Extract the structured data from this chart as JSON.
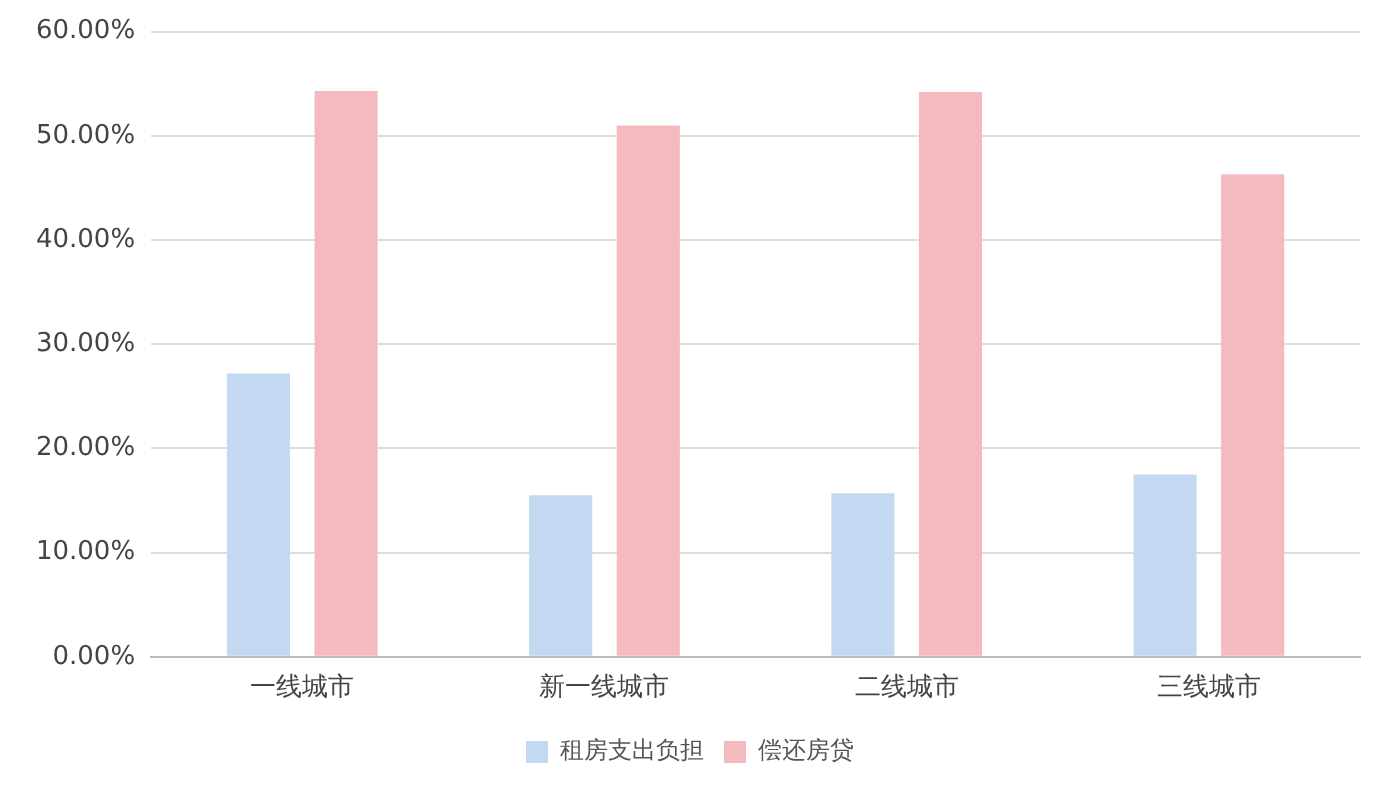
{
  "chart_data": {
    "type": "bar",
    "categories": [
      "一线城市",
      "新一线城市",
      "二线城市",
      "三线城市"
    ],
    "series": [
      {
        "name": "租房支出负担",
        "color": "#c3d9f2",
        "values": [
          27.2,
          15.5,
          15.7,
          17.5
        ]
      },
      {
        "name": "偿还房贷",
        "color": "#f5babd",
        "values": [
          54.3,
          51.0,
          54.2,
          46.3
        ]
      }
    ],
    "ylim": [
      0,
      60
    ],
    "yticks": [
      {
        "value": 0,
        "label": "0.00%"
      },
      {
        "value": 10,
        "label": "10.00%"
      },
      {
        "value": 20,
        "label": "20.00%"
      },
      {
        "value": 30,
        "label": "30.00%"
      },
      {
        "value": 40,
        "label": "40.00%"
      },
      {
        "value": 50,
        "label": "50.00%"
      },
      {
        "value": 60,
        "label": "60.00%"
      }
    ],
    "grid": "y",
    "legend": "bottom"
  }
}
